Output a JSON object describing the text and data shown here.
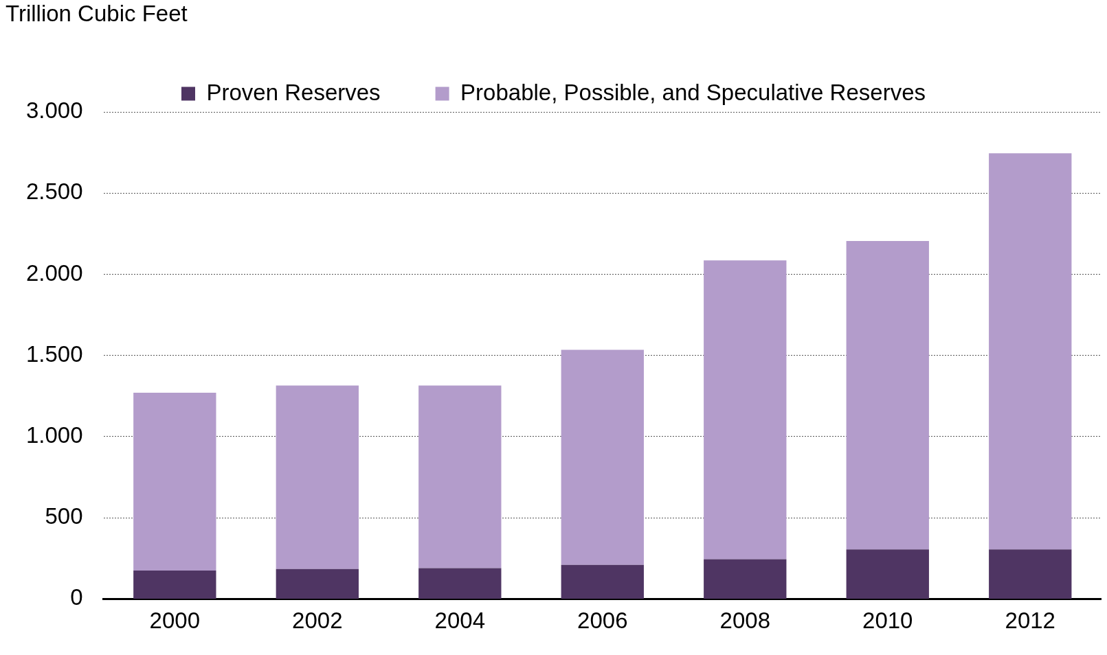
{
  "chart_data": {
    "type": "bar",
    "ylabel": "Trillion Cubic Feet",
    "categories": [
      "2000",
      "2002",
      "2004",
      "2006",
      "2008",
      "2010",
      "2012"
    ],
    "series": [
      {
        "name": "Proven Reserves",
        "color": "#4f3563",
        "values": [
          175,
          185,
          190,
          210,
          245,
          305,
          305
        ]
      },
      {
        "name": "Probable, Possible, and Speculative Reserves",
        "color": "#b39ccb",
        "values": [
          1095,
          1130,
          1125,
          1325,
          1840,
          1900,
          2440
        ]
      }
    ],
    "stacked": true,
    "ylim": [
      0,
      3000
    ],
    "yticks": [
      0,
      {
        "value": 500,
        "label": "500"
      },
      {
        "value": 1000,
        "label": "1.000"
      },
      {
        "value": 1500,
        "label": "1.500"
      },
      {
        "value": 2000,
        "label": "2.000"
      },
      {
        "value": 2500,
        "label": "2.500"
      },
      {
        "value": 3000,
        "label": "3.000"
      }
    ],
    "grid": "y",
    "legend": "top"
  }
}
